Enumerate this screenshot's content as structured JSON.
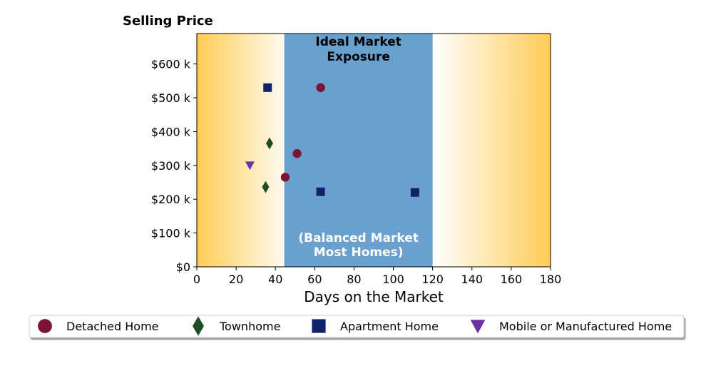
{
  "chart_data": {
    "type": "scatter",
    "title": "Selling Price",
    "xlabel": "Days on the Market",
    "ylabel": "",
    "xlim": [
      0,
      180
    ],
    "ylim": [
      0,
      690000
    ],
    "x_ticks": [
      0,
      20,
      40,
      60,
      80,
      100,
      120,
      140,
      160,
      180
    ],
    "y_ticks": [
      {
        "value": 0,
        "label": "$0"
      },
      {
        "value": 100000,
        "label": "$100 k"
      },
      {
        "value": 200000,
        "label": "$200 k"
      },
      {
        "value": 300000,
        "label": "$300 k"
      },
      {
        "value": 400000,
        "label": "$400 k"
      },
      {
        "value": 500000,
        "label": "$500 k"
      },
      {
        "value": 600000,
        "label": "$600 k"
      }
    ],
    "ideal_band": {
      "x_range": [
        44.5,
        120
      ],
      "label_top": [
        "Ideal Market",
        "Exposure"
      ],
      "label_bottom": [
        "(Balanced Market",
        "Most Homes)"
      ],
      "color": "#6aa0cd"
    },
    "background_gradient": {
      "edge_color": "#ffcc55",
      "center_color": "#ffffff"
    },
    "series": [
      {
        "name": "Detached Home",
        "marker": "circle",
        "color": "#7b1533",
        "points": [
          [
            63,
            530000
          ],
          [
            51,
            335000
          ],
          [
            45,
            265000
          ]
        ]
      },
      {
        "name": "Townhome",
        "marker": "diamond",
        "color": "#1e4d26",
        "points": [
          [
            37,
            365000
          ],
          [
            35,
            236000
          ]
        ]
      },
      {
        "name": "Apartment Home",
        "marker": "square",
        "color": "#13206b",
        "points": [
          [
            36,
            530000
          ],
          [
            63,
            222000
          ],
          [
            111,
            220000
          ]
        ]
      },
      {
        "name": "Mobile or Manufactured Home",
        "marker": "triangle-down",
        "color": "#6a35a0",
        "points": [
          [
            27,
            300000
          ]
        ]
      }
    ],
    "legend_position": "bottom"
  }
}
